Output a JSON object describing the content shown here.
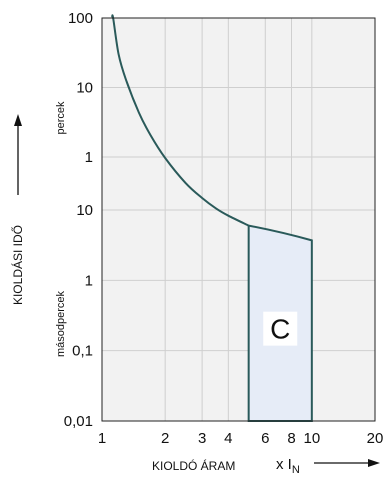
{
  "chart_data": {
    "type": "line",
    "x_scale": "log",
    "x_ticks": [
      "1",
      "2",
      "3",
      "4",
      "6",
      "8",
      "10",
      "20"
    ],
    "x_tick_values": [
      1,
      2,
      3,
      4,
      6,
      8,
      10,
      20
    ],
    "y_ticks_minutes": [
      "100",
      "10",
      "1"
    ],
    "y_ticks_seconds": [
      "10",
      "1",
      "0,1",
      "0,01"
    ],
    "y_unit_minutes": "percek",
    "y_unit_seconds": "másodpercek",
    "ylabel": "KIOLDÁSI IDŐ",
    "xlabel": "KIOLDÓ ÁRAM",
    "x_unit_prefix": "x I",
    "x_unit_subscript": "N",
    "grid": true,
    "curve_seconds": [
      {
        "x": 1.13,
        "y": 6000
      },
      {
        "x": 1.2,
        "y": 1800
      },
      {
        "x": 1.3,
        "y": 780
      },
      {
        "x": 1.5,
        "y": 260
      },
      {
        "x": 1.7,
        "y": 125
      },
      {
        "x": 2.0,
        "y": 58
      },
      {
        "x": 2.5,
        "y": 25
      },
      {
        "x": 3.0,
        "y": 15
      },
      {
        "x": 3.5,
        "y": 10.5
      },
      {
        "x": 4.0,
        "y": 8.3
      },
      {
        "x": 5.0,
        "y": 6.0
      }
    ],
    "region": {
      "label": "C",
      "x_from": 5,
      "x_to": 10,
      "top_left_s": 6.0,
      "top_right_s": 3.7,
      "bottom_s": 0.01,
      "fill": "#e6ecf7"
    },
    "colors": {
      "curve": "#2a5a5a",
      "grid": "#cfcfcf",
      "plot_bg": "#f2f2f2"
    }
  }
}
